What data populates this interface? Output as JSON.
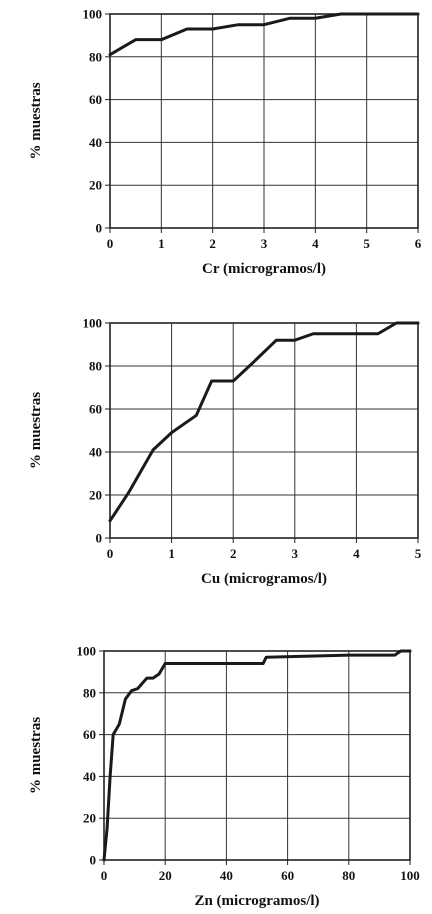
{
  "chart_data": [
    {
      "type": "line",
      "xlabel": "Cr (microgramos/l)",
      "ylabel": "% muestras",
      "xlim": [
        0,
        6
      ],
      "ylim": [
        0,
        100
      ],
      "xticks": [
        0,
        1,
        2,
        3,
        4,
        5,
        6
      ],
      "yticks": [
        0,
        20,
        40,
        60,
        80,
        100
      ],
      "grid": true,
      "series": [
        {
          "x": [
            0,
            0.5,
            1.0,
            1.5,
            2.0,
            2.5,
            3.0,
            3.5,
            4.0,
            4.5,
            5.0,
            6.0
          ],
          "y": [
            81,
            88,
            88,
            93,
            93,
            95,
            95,
            98,
            98,
            100,
            100,
            100
          ]
        }
      ]
    },
    {
      "type": "line",
      "xlabel": "Cu (microgramos/l)",
      "ylabel": "% muestras",
      "xlim": [
        0,
        5
      ],
      "ylim": [
        0,
        100
      ],
      "xticks": [
        0,
        1,
        2,
        3,
        4,
        5
      ],
      "yticks": [
        0,
        20,
        40,
        60,
        80,
        100
      ],
      "grid": true,
      "series": [
        {
          "x": [
            0,
            0.3,
            0.7,
            1.0,
            1.4,
            1.65,
            2.0,
            2.3,
            2.7,
            3.0,
            3.3,
            4.0,
            4.35,
            4.65,
            5.0
          ],
          "y": [
            8,
            21,
            41,
            49,
            57,
            73,
            73,
            81,
            92,
            92,
            95,
            95,
            95,
            100,
            100
          ]
        }
      ]
    },
    {
      "type": "line",
      "xlabel": "Zn (microgramos/l)",
      "ylabel": "% muestras",
      "xlim": [
        0,
        100
      ],
      "ylim": [
        0,
        100
      ],
      "xticks": [
        0,
        20,
        40,
        60,
        80,
        100
      ],
      "yticks": [
        0,
        20,
        40,
        60,
        80,
        100
      ],
      "grid": true,
      "series": [
        {
          "x": [
            0,
            1,
            2,
            3,
            5,
            7,
            9,
            11,
            14,
            16,
            18,
            20,
            30,
            52,
            53,
            80,
            95,
            97,
            100
          ],
          "y": [
            0,
            15,
            40,
            60,
            65,
            77,
            81,
            82,
            87,
            87,
            89,
            94,
            94,
            94,
            97,
            98,
            98,
            100,
            100
          ]
        }
      ]
    }
  ]
}
